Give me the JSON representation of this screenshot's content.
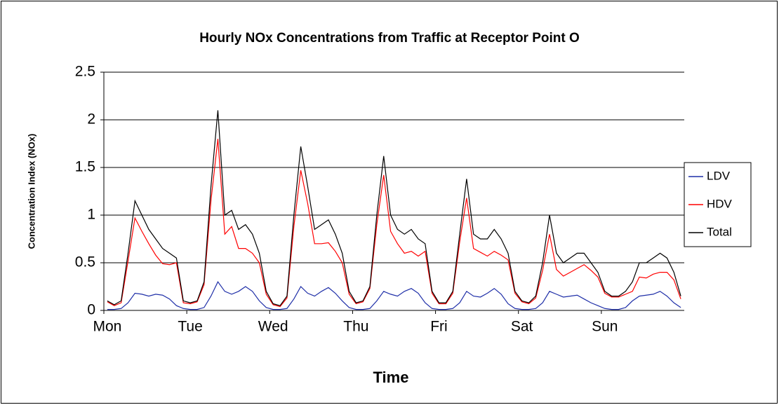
{
  "chart_data": {
    "type": "line",
    "title": "Hourly NOx Concentrations from Traffic at Receptor Point O",
    "x_label": "Time",
    "y_label": "Concentration Index (NOx)",
    "categories": [
      "Mon",
      null,
      null,
      null,
      null,
      null,
      null,
      null,
      null,
      null,
      null,
      null,
      "Tue",
      null,
      null,
      null,
      null,
      null,
      null,
      null,
      null,
      null,
      null,
      null,
      "Wed",
      null,
      null,
      null,
      null,
      null,
      null,
      null,
      null,
      null,
      null,
      null,
      "Thu",
      null,
      null,
      null,
      null,
      null,
      null,
      null,
      null,
      null,
      null,
      null,
      "Fri",
      null,
      null,
      null,
      null,
      null,
      null,
      null,
      null,
      null,
      null,
      null,
      "Sat",
      null,
      null,
      null,
      null,
      null,
      null,
      null,
      null,
      null,
      null,
      null,
      "Sun",
      null,
      null,
      null,
      null,
      null,
      null,
      null,
      null,
      null,
      null,
      null
    ],
    "series": [
      {
        "name": "LDV",
        "color": "#1f2fa8",
        "values": [
          0.01,
          0.01,
          0.02,
          0.08,
          0.18,
          0.17,
          0.15,
          0.17,
          0.16,
          0.12,
          0.05,
          0.02,
          0.01,
          0.01,
          0.03,
          0.15,
          0.3,
          0.2,
          0.17,
          0.2,
          0.25,
          0.2,
          0.1,
          0.03,
          0.01,
          0.01,
          0.02,
          0.12,
          0.25,
          0.18,
          0.15,
          0.2,
          0.24,
          0.18,
          0.1,
          0.03,
          0.01,
          0.01,
          0.02,
          0.1,
          0.2,
          0.17,
          0.15,
          0.2,
          0.23,
          0.18,
          0.08,
          0.02,
          0.01,
          0.01,
          0.02,
          0.08,
          0.2,
          0.15,
          0.14,
          0.18,
          0.23,
          0.17,
          0.07,
          0.02,
          0.01,
          0.01,
          0.02,
          0.08,
          0.2,
          0.17,
          0.14,
          0.15,
          0.16,
          0.12,
          0.08,
          0.05,
          0.02,
          0.01,
          0.01,
          0.03,
          0.1,
          0.15,
          0.16,
          0.17,
          0.2,
          0.15,
          0.08,
          0.03
        ]
      },
      {
        "name": "HDV",
        "color": "#ff0000",
        "values": [
          0.09,
          0.05,
          0.08,
          0.52,
          0.97,
          0.83,
          0.7,
          0.58,
          0.49,
          0.48,
          0.5,
          0.08,
          0.07,
          0.09,
          0.27,
          1.15,
          1.8,
          0.8,
          0.88,
          0.65,
          0.65,
          0.6,
          0.5,
          0.17,
          0.06,
          0.04,
          0.13,
          0.88,
          1.47,
          1.12,
          0.7,
          0.7,
          0.71,
          0.62,
          0.5,
          0.17,
          0.07,
          0.09,
          0.23,
          0.9,
          1.42,
          0.83,
          0.7,
          0.6,
          0.62,
          0.57,
          0.62,
          0.18,
          0.07,
          0.07,
          0.18,
          0.72,
          1.18,
          0.65,
          0.61,
          0.57,
          0.62,
          0.58,
          0.53,
          0.18,
          0.09,
          0.07,
          0.13,
          0.42,
          0.8,
          0.43,
          0.36,
          0.4,
          0.44,
          0.48,
          0.42,
          0.35,
          0.18,
          0.14,
          0.14,
          0.17,
          0.2,
          0.35,
          0.34,
          0.38,
          0.4,
          0.4,
          0.32,
          0.12
        ]
      },
      {
        "name": "Total",
        "color": "#000000",
        "values": [
          0.1,
          0.06,
          0.1,
          0.6,
          1.15,
          1.0,
          0.85,
          0.75,
          0.65,
          0.6,
          0.55,
          0.1,
          0.08,
          0.1,
          0.3,
          1.3,
          2.1,
          1.0,
          1.05,
          0.85,
          0.9,
          0.8,
          0.6,
          0.2,
          0.07,
          0.05,
          0.15,
          1.0,
          1.72,
          1.3,
          0.85,
          0.9,
          0.95,
          0.8,
          0.6,
          0.2,
          0.08,
          0.1,
          0.25,
          1.0,
          1.62,
          1.0,
          0.85,
          0.8,
          0.85,
          0.75,
          0.7,
          0.2,
          0.08,
          0.08,
          0.2,
          0.8,
          1.38,
          0.8,
          0.75,
          0.75,
          0.85,
          0.75,
          0.6,
          0.2,
          0.1,
          0.08,
          0.15,
          0.5,
          1.0,
          0.6,
          0.5,
          0.55,
          0.6,
          0.6,
          0.5,
          0.4,
          0.2,
          0.15,
          0.15,
          0.2,
          0.3,
          0.5,
          0.5,
          0.55,
          0.6,
          0.55,
          0.4,
          0.15
        ]
      }
    ],
    "ylim": [
      0,
      2.5
    ],
    "yticks": [
      0,
      0.5,
      1,
      1.5,
      2,
      2.5
    ],
    "grid": true,
    "legend": "right"
  }
}
